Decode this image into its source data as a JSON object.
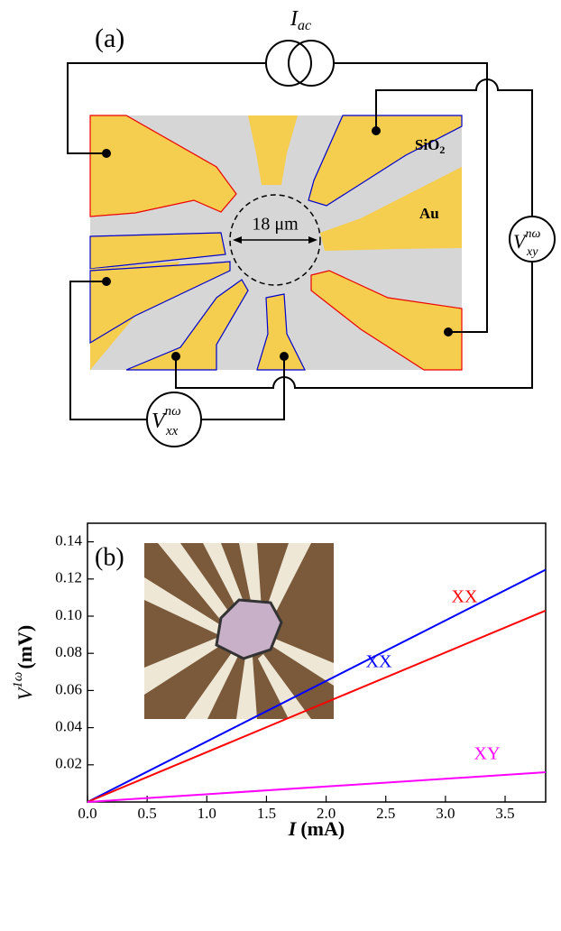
{
  "diagram": {
    "panel_label": "(a)",
    "source": {
      "main": "I",
      "subscript": "ac"
    },
    "region_labels": {
      "oxide": {
        "main": "SiO",
        "subscript": "2"
      },
      "metal": "Au"
    },
    "scale": "18 μm",
    "voltmeter_xx": {
      "main": "V",
      "superscript": "nω",
      "subscript": "xx"
    },
    "voltmeter_xy": {
      "main": "V",
      "superscript": "nω",
      "subscript": "xy"
    }
  },
  "chart_data": {
    "type": "line",
    "panel_label": "(b)",
    "y_label": {
      "main": "V",
      "superscript": "1ω",
      "unit": "(mV)"
    },
    "x_label": {
      "main": "I",
      "unit": "(mA)"
    },
    "x": [
      0,
      3.84
    ],
    "series": [
      {
        "name": "XX",
        "color": "#0000ff",
        "values": [
          0,
          0.125
        ]
      },
      {
        "name": "XX",
        "color": "#ff0000",
        "values": [
          0,
          0.103
        ]
      },
      {
        "name": "XY",
        "color": "#ff00ff",
        "values": [
          0,
          0.016
        ]
      }
    ],
    "xlim": [
      0,
      3.84
    ],
    "xticks": [
      {
        "value": 0,
        "label": "0.0"
      },
      0.5,
      {
        "value": 1,
        "label": "1.0"
      },
      1.5,
      {
        "value": 2,
        "label": "2.0"
      },
      2.5,
      {
        "value": 3,
        "label": "3.0"
      },
      3.5
    ],
    "ylim": [
      0,
      0.15
    ],
    "yticks": [
      0.02,
      0.04,
      0.06,
      0.08,
      {
        "value": 0.1,
        "label": "0.10"
      },
      0.12,
      0.14
    ]
  }
}
